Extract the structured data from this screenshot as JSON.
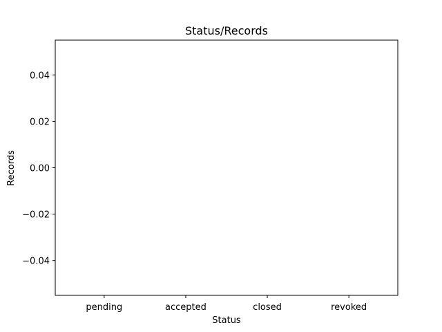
{
  "chart_data": {
    "type": "bar",
    "title": "Status/Records",
    "xlabel": "Status",
    "ylabel": "Records",
    "categories": [
      "pending",
      "accepted",
      "closed",
      "revoked"
    ],
    "values": [
      0,
      0,
      0,
      0
    ],
    "ylim": [
      -0.055,
      0.055
    ],
    "yticks": [
      0.04,
      0.02,
      0.0,
      -0.02,
      -0.04
    ],
    "ytick_labels": [
      "0.04",
      "0.02",
      "0.00",
      "−0.02",
      "−0.04"
    ],
    "grid": false,
    "legend": "none",
    "colors": {
      "bar": "#1f77b4",
      "axes": "#000000",
      "background": "#ffffff"
    }
  }
}
